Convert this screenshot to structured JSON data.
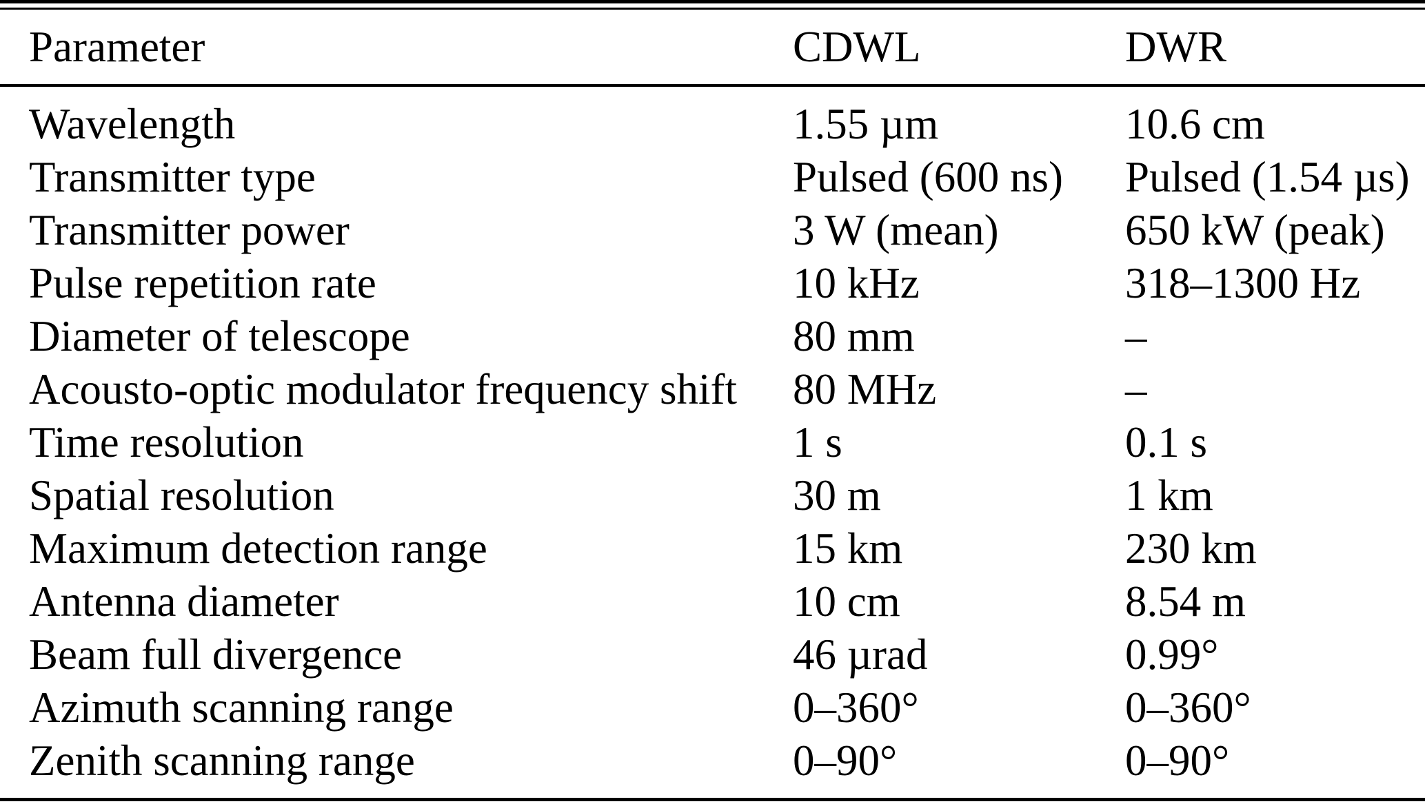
{
  "table": {
    "columns": [
      "Parameter",
      "CDWL",
      "DWR"
    ],
    "rows": [
      {
        "parameter": "Wavelength",
        "cdwl": "1.55 µm",
        "dwr": "10.6 cm"
      },
      {
        "parameter": "Transmitter type",
        "cdwl": "Pulsed (600 ns)",
        "dwr": "Pulsed (1.54 µs)"
      },
      {
        "parameter": "Transmitter power",
        "cdwl": "3 W (mean)",
        "dwr": "650 kW (peak)"
      },
      {
        "parameter": "Pulse repetition rate",
        "cdwl": "10 kHz",
        "dwr": "318–1300 Hz"
      },
      {
        "parameter": "Diameter of telescope",
        "cdwl": "80 mm",
        "dwr": "–"
      },
      {
        "parameter": "Acousto-optic modulator frequency shift",
        "cdwl": "80 MHz",
        "dwr": "–"
      },
      {
        "parameter": "Time resolution",
        "cdwl": "1 s",
        "dwr": "0.1 s"
      },
      {
        "parameter": "Spatial resolution",
        "cdwl": "30 m",
        "dwr": "1 km"
      },
      {
        "parameter": "Maximum detection range",
        "cdwl": "15 km",
        "dwr": "230 km"
      },
      {
        "parameter": "Antenna diameter",
        "cdwl": "10 cm",
        "dwr": "8.54 m"
      },
      {
        "parameter": "Beam full divergence",
        "cdwl": "46 µrad",
        "dwr": "0.99°"
      },
      {
        "parameter": "Azimuth scanning range",
        "cdwl": "0–360°",
        "dwr": "0–360°"
      },
      {
        "parameter": "Zenith scanning range",
        "cdwl": "0–90°",
        "dwr": "0–90°"
      }
    ]
  },
  "colors": {
    "text": "#000000",
    "background": "#ffffff",
    "rule": "#000000"
  }
}
